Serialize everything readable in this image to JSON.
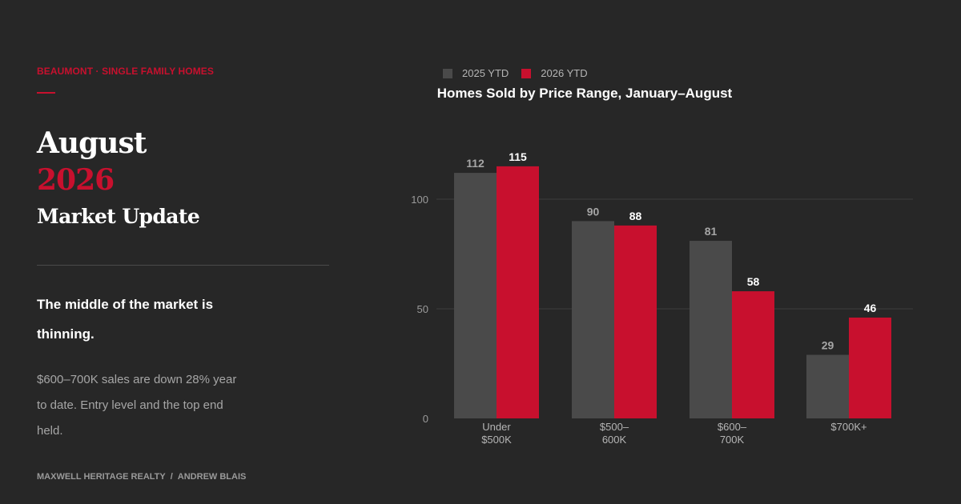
{
  "header": {
    "eyebrow": "BEAUMONT · SINGLE FAMILY HOMES",
    "title_month": "August",
    "title_year": "2026",
    "title_sub": "Market Update"
  },
  "summary": {
    "headline": "The middle of the market is thinning.",
    "body": "$600–700K sales are down 28% year to date. Entry level and the top end held."
  },
  "footer": {
    "company": "MAXWELL HERITAGE REALTY",
    "separator": "/",
    "agent": "ANDREW BLAIS"
  },
  "colors": {
    "background": "#272727",
    "accent": "#c8102e",
    "series_2025": "#4a4a4a",
    "series_2026": "#c8102e",
    "grid": "#3c3c3c"
  },
  "chart_data": {
    "type": "bar",
    "title": "Homes Sold by Price Range, January–August",
    "xlabel": "",
    "ylabel": "",
    "categories": [
      [
        "Under",
        "$500K"
      ],
      [
        "$500–",
        "600K"
      ],
      [
        "$600–",
        "700K"
      ],
      [
        "$700K+"
      ]
    ],
    "series": [
      {
        "name": "2025 YTD",
        "values": [
          112,
          90,
          81,
          29
        ],
        "color": "#4a4a4a",
        "label_color": "#a6a6a6"
      },
      {
        "name": "2026 YTD",
        "values": [
          115,
          88,
          58,
          46
        ],
        "color": "#c8102e",
        "label_color": "#ffffff"
      }
    ],
    "ylim": [
      0,
      115
    ],
    "yticks": [
      0,
      50,
      100
    ],
    "grid": true,
    "legend_position": "top-left"
  }
}
